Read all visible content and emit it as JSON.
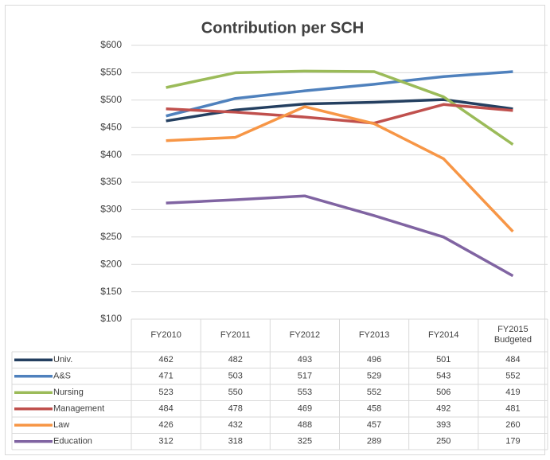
{
  "chart_data": {
    "type": "line",
    "title": "Contribution per SCH",
    "categories": [
      "FY2010",
      "FY2011",
      "FY2012",
      "FY2013",
      "FY2014",
      "FY2015 Budgeted"
    ],
    "series": [
      {
        "name": "Univ.",
        "color": "#243f60",
        "values": [
          462,
          482,
          493,
          496,
          501,
          484
        ]
      },
      {
        "name": "A&S",
        "color": "#4f81bd",
        "values": [
          471,
          503,
          517,
          529,
          543,
          552
        ]
      },
      {
        "name": "Nursing",
        "color": "#9bbb59",
        "values": [
          523,
          550,
          553,
          552,
          506,
          419
        ]
      },
      {
        "name": "Management",
        "color": "#c0504d",
        "values": [
          484,
          478,
          469,
          458,
          492,
          481
        ]
      },
      {
        "name": "Law",
        "color": "#f79646",
        "values": [
          426,
          432,
          488,
          457,
          393,
          260
        ]
      },
      {
        "name": "Education",
        "color": "#8064a2",
        "values": [
          312,
          318,
          325,
          289,
          250,
          179
        ]
      }
    ],
    "ylim": [
      100,
      600
    ],
    "yticks": [
      {
        "value": 100,
        "label": "$100"
      },
      {
        "value": 150,
        "label": "$150"
      },
      {
        "value": 200,
        "label": "$200"
      },
      {
        "value": 250,
        "label": "$250"
      },
      {
        "value": 300,
        "label": "$300"
      },
      {
        "value": 350,
        "label": "$350"
      },
      {
        "value": 400,
        "label": "$400"
      },
      {
        "value": 450,
        "label": "$450"
      },
      {
        "value": 500,
        "label": "$500"
      },
      {
        "value": 550,
        "label": "$550"
      },
      {
        "value": 600,
        "label": "$600"
      }
    ],
    "grid": true
  }
}
